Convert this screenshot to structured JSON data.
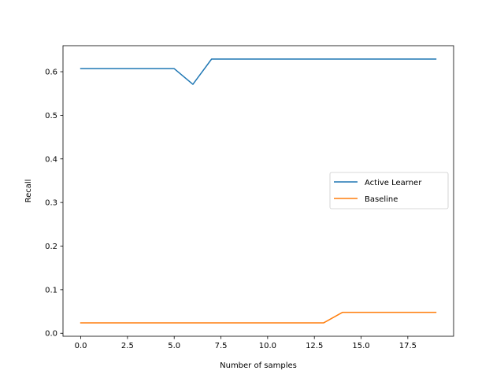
{
  "chart_data": {
    "type": "line",
    "title": "",
    "xlabel": "Number of samples",
    "ylabel": "Recall",
    "xlim": [
      -0.95,
      19.95
    ],
    "ylim": [
      -0.0068,
      0.6597
    ],
    "xticks": [
      0.0,
      2.5,
      5.0,
      7.5,
      10.0,
      12.5,
      15.0,
      17.5
    ],
    "xtick_labels": [
      "0.0",
      "2.5",
      "5.0",
      "7.5",
      "10.0",
      "12.5",
      "15.0",
      "17.5"
    ],
    "yticks": [
      0.0,
      0.1,
      0.2,
      0.3,
      0.4,
      0.5,
      0.6
    ],
    "ytick_labels": [
      "0.0",
      "0.1",
      "0.2",
      "0.3",
      "0.4",
      "0.5",
      "0.6"
    ],
    "grid": false,
    "legend_position": "center-right",
    "x": [
      0,
      1,
      2,
      3,
      4,
      5,
      6,
      7,
      8,
      9,
      10,
      11,
      12,
      13,
      14,
      15,
      16,
      17,
      18,
      19
    ],
    "series": [
      {
        "name": "Active Learner",
        "color": "#1f77b4",
        "values": [
          0.607,
          0.607,
          0.607,
          0.607,
          0.607,
          0.607,
          0.571,
          0.629,
          0.629,
          0.629,
          0.629,
          0.629,
          0.629,
          0.629,
          0.629,
          0.629,
          0.629,
          0.629,
          0.629,
          0.629
        ]
      },
      {
        "name": "Baseline",
        "color": "#ff7f0e",
        "values": [
          0.024,
          0.024,
          0.024,
          0.024,
          0.024,
          0.024,
          0.024,
          0.024,
          0.024,
          0.024,
          0.024,
          0.024,
          0.024,
          0.024,
          0.048,
          0.048,
          0.048,
          0.048,
          0.048,
          0.048
        ]
      }
    ]
  }
}
